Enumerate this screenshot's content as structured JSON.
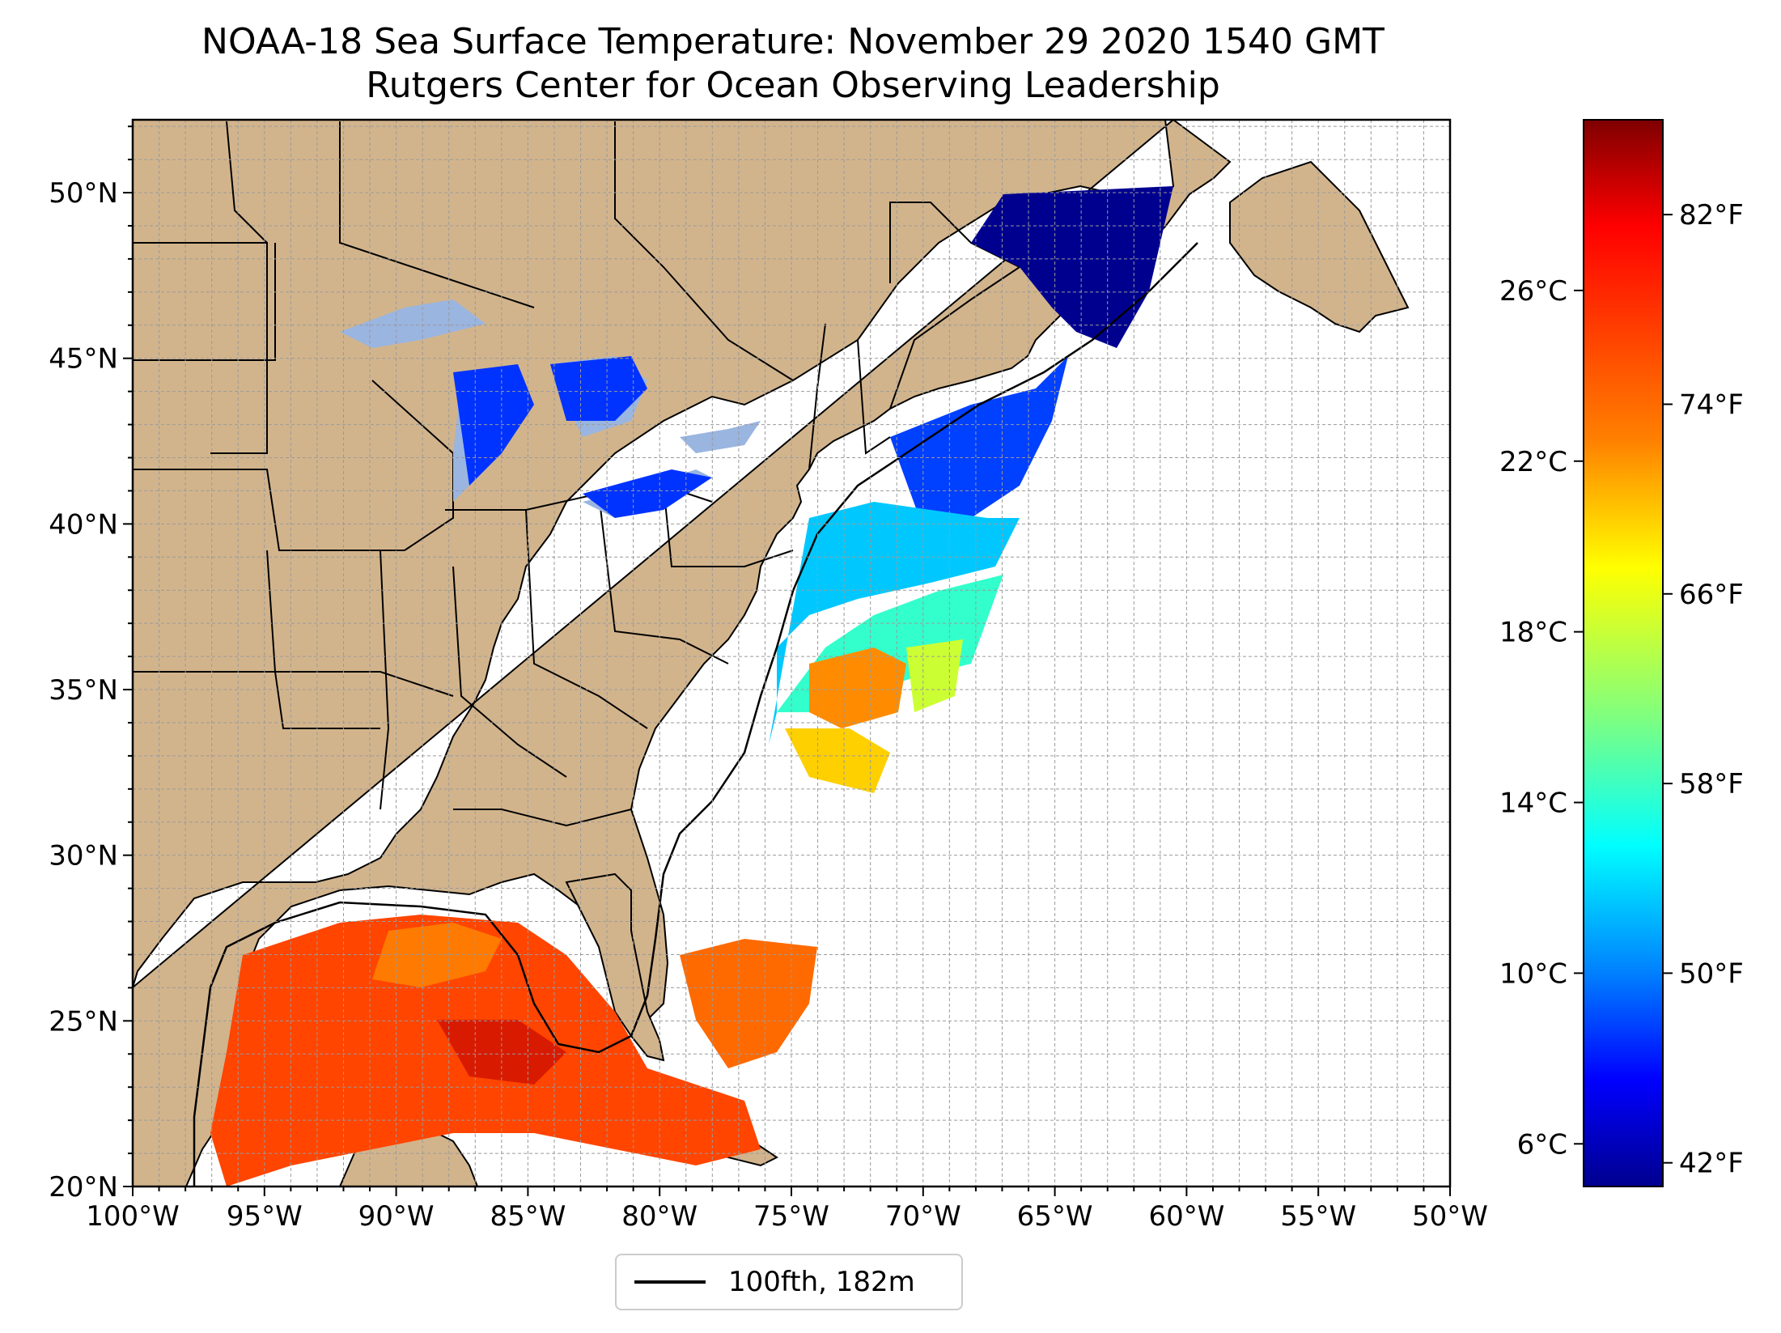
{
  "title": {
    "line1": "NOAA-18 Sea Surface Temperature: November 29 2020 1540 GMT",
    "line2": "Rutgers Center for Ocean Observing Leadership"
  },
  "map": {
    "lon_range": [
      -100,
      -50
    ],
    "lat_range": [
      20,
      52.2
    ],
    "land_color": "#d2b48c",
    "lake_color": "#9ab5e0",
    "ocean_color": "#ffffff",
    "lon_ticks": [
      {
        "value": -100,
        "label": "100°W"
      },
      {
        "value": -95,
        "label": "95°W"
      },
      {
        "value": -90,
        "label": "90°W"
      },
      {
        "value": -85,
        "label": "85°W"
      },
      {
        "value": -80,
        "label": "80°W"
      },
      {
        "value": -75,
        "label": "75°W"
      },
      {
        "value": -70,
        "label": "70°W"
      },
      {
        "value": -65,
        "label": "65°W"
      },
      {
        "value": -60,
        "label": "60°W"
      },
      {
        "value": -55,
        "label": "55°W"
      },
      {
        "value": -50,
        "label": "50°W"
      }
    ],
    "lat_ticks": [
      {
        "value": 20,
        "label": "20°N"
      },
      {
        "value": 25,
        "label": "25°N"
      },
      {
        "value": 30,
        "label": "30°N"
      },
      {
        "value": 35,
        "label": "35°N"
      },
      {
        "value": 40,
        "label": "40°N"
      },
      {
        "value": 45,
        "label": "45°N"
      },
      {
        "value": 50,
        "label": "50°N"
      }
    ]
  },
  "colorbar": {
    "colors": [
      "#7f0000",
      "#ff0000",
      "#ff8000",
      "#ffff00",
      "#7fff7f",
      "#00ffff",
      "#0080ff",
      "#0000ff",
      "#00008f"
    ],
    "celsius_range": [
      5,
      30
    ],
    "celsius_ticks": [
      {
        "value": 6,
        "label": "6°C"
      },
      {
        "value": 10,
        "label": "10°C"
      },
      {
        "value": 14,
        "label": "14°C"
      },
      {
        "value": 18,
        "label": "18°C"
      },
      {
        "value": 22,
        "label": "22°C"
      },
      {
        "value": 26,
        "label": "26°C"
      }
    ],
    "fahrenheit_ticks": [
      {
        "value": 42,
        "label": "42°F"
      },
      {
        "value": 50,
        "label": "50°F"
      },
      {
        "value": 58,
        "label": "58°F"
      },
      {
        "value": 66,
        "label": "66°F"
      },
      {
        "value": 74,
        "label": "74°F"
      },
      {
        "value": 82,
        "label": "82°F"
      }
    ]
  },
  "legend": {
    "label": "100fth, 182m",
    "line_color": "#000000"
  }
}
